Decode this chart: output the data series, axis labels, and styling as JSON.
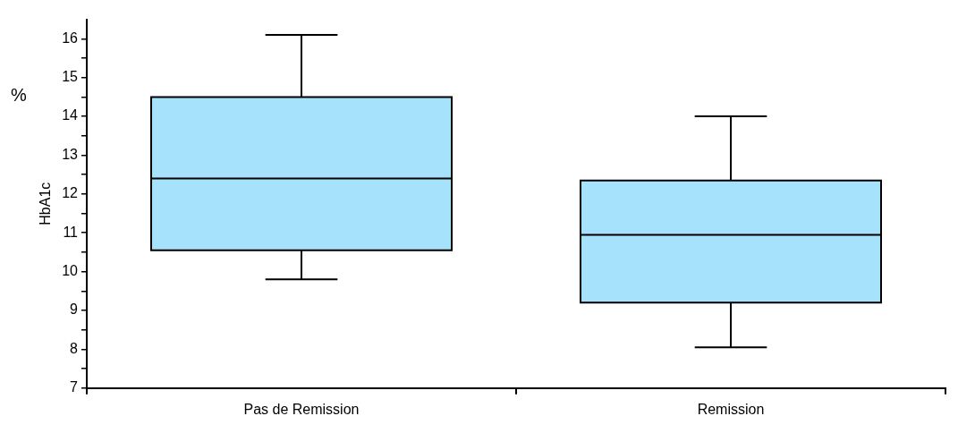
{
  "chart_data": {
    "type": "box",
    "ylabel": "HbA1c",
    "annotations": [
      "%"
    ],
    "categories": [
      "Pas de Remission",
      "Remission"
    ],
    "color": "#a6e2fb",
    "boxes": [
      {
        "low": 9.8,
        "q1": 10.55,
        "median": 12.4,
        "q3": 14.5,
        "high": 16.1
      },
      {
        "low": 8.05,
        "q1": 9.2,
        "median": 10.95,
        "q3": 12.35,
        "high": 14
      }
    ],
    "ylim": [
      7,
      16.5
    ],
    "yticks": [
      7,
      {
        "value": 7.5,
        "label": null
      },
      8,
      {
        "value": 8.5,
        "label": null
      },
      9,
      {
        "value": 9.5,
        "label": null
      },
      10,
      {
        "value": 10.5,
        "label": null
      },
      11,
      {
        "value": 11.5,
        "label": null
      },
      12,
      {
        "value": 12.5,
        "label": null
      },
      13,
      {
        "value": 13.5,
        "label": null
      },
      14,
      {
        "value": 14.5,
        "label": null
      },
      15,
      {
        "value": 15.5,
        "label": null
      },
      16
    ],
    "grid": false,
    "legend": false
  }
}
